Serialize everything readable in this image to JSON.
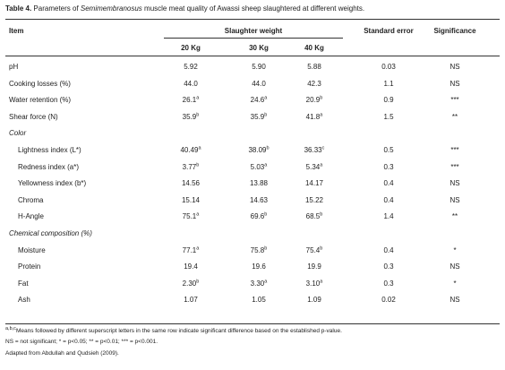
{
  "caption": {
    "table_label": "Table 4.",
    "text_before": " Parameters of ",
    "species_italic": "Semimembranosus",
    "text_after": " muscle meat quality of Awassi sheep slaughtered at different weights."
  },
  "headers": {
    "item": "Item",
    "slaughter_weight": "Slaughter weight",
    "standard_error": "Standard error",
    "significance": "Significance",
    "w20": "20 Kg",
    "w30": "30 Kg",
    "w40": "40 Kg"
  },
  "rows": [
    {
      "label": "pH",
      "v20": "5.92",
      "s20": "",
      "v30": "5.90",
      "s30": "",
      "v40": "5.88",
      "s40": "",
      "se": "0.03",
      "sig": "NS"
    },
    {
      "label": "Cooking losses (%)",
      "v20": "44.0",
      "s20": "",
      "v30": "44.0",
      "s30": "",
      "v40": "42.3",
      "s40": "",
      "se": "1.1",
      "sig": "NS"
    },
    {
      "label": "Water retention (%)",
      "v20": "26.1",
      "s20": "a",
      "v30": "24.6",
      "s30": "a",
      "v40": "20.9",
      "s40": "b",
      "se": "0.9",
      "sig": "***"
    },
    {
      "label": "Shear force (N)",
      "v20": "35.9",
      "s20": "b",
      "v30": "35.9",
      "s30": "b",
      "v40": "41.8",
      "s40": "a",
      "se": "1.5",
      "sig": "**"
    },
    {
      "section": "Color"
    },
    {
      "label": "Lightness index (L*)",
      "v20": "40.49",
      "s20": "a",
      "v30": "38.09",
      "s30": "b",
      "v40": "36.33",
      "s40": "c",
      "se": "0.5",
      "sig": "***"
    },
    {
      "label": "Redness index (a*)",
      "v20": "3.77",
      "s20": "b",
      "v30": "5.03",
      "s30": "a",
      "v40": "5.34",
      "s40": "a",
      "se": "0.3",
      "sig": "***"
    },
    {
      "label": "Yellowness index (b*)",
      "v20": "14.56",
      "s20": "",
      "v30": "13.88",
      "s30": "",
      "v40": "14.17",
      "s40": "",
      "se": "0.4",
      "sig": "NS"
    },
    {
      "label": "Chroma",
      "v20": "15.14",
      "s20": "",
      "v30": "14.63",
      "s30": "",
      "v40": "15.22",
      "s40": "",
      "se": "0.4",
      "sig": "NS"
    },
    {
      "label": "H-Angle",
      "v20": "75.1",
      "s20": "a",
      "v30": "69.6",
      "s30": "b",
      "v40": "68.5",
      "s40": "b",
      "se": "1.4",
      "sig": "**"
    },
    {
      "section": "Chemical composition (%)"
    },
    {
      "label": "Moisture",
      "v20": "77.1",
      "s20": "a",
      "v30": "75.8",
      "s30": "b",
      "v40": "75.4",
      "s40": "b",
      "se": "0.4",
      "sig": "*"
    },
    {
      "label": "Protein",
      "v20": "19.4",
      "s20": "",
      "v30": "19.6",
      "s30": "",
      "v40": "19.9",
      "s40": "",
      "se": "0.3",
      "sig": "NS"
    },
    {
      "label": "Fat",
      "v20": "2.30",
      "s20": "b",
      "v30": "3.30",
      "s30": "a",
      "v40": "3.10",
      "s40": "a",
      "se": "0.3",
      "sig": "*"
    },
    {
      "label": "Ash",
      "v20": "1.07",
      "s20": "",
      "v30": "1.05",
      "s30": "",
      "v40": "1.09",
      "s40": "",
      "se": "0.02",
      "sig": "NS"
    }
  ],
  "footnotes": {
    "line1_sup": "a,b,c",
    "line1_text": "Means followed by different superscript letters in the same row indicate significant difference based on the established p-value.",
    "line2": "NS = not significant; * = p<0.05; ** = p<0.01; *** = p<0.001.",
    "line3": "Adapted from Abdullah and Qudsieh (2009)."
  }
}
